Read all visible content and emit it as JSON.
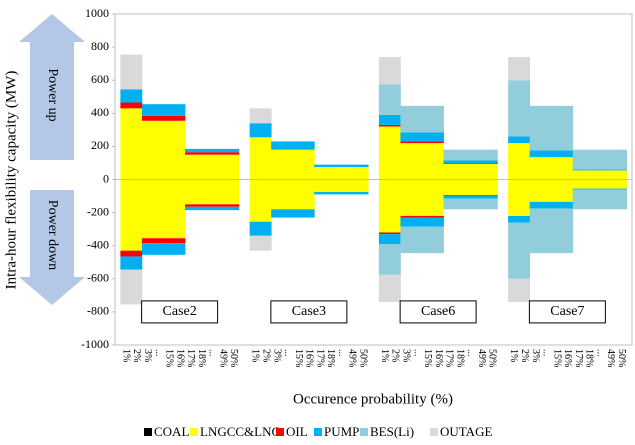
{
  "chart_data": {
    "type": "mirrored-stacked-bar",
    "y_label": "Intra-hour flexibility capacity (MW)",
    "x_label": "Occurence probability (%)",
    "annotations": [
      "Power up",
      "Power down"
    ],
    "ylim": [
      -1000,
      1000
    ],
    "yticks": [
      -1000,
      -800,
      -600,
      -400,
      -200,
      0,
      200,
      400,
      600,
      800,
      1000
    ],
    "grid": false,
    "legend": "bottom",
    "series": [
      {
        "name": "COAL",
        "color": "#000000"
      },
      {
        "name": "LNGCC&LNG",
        "color": "#ffff00"
      },
      {
        "name": "OIL",
        "color": "#ff0000"
      },
      {
        "name": "PUMP",
        "color": "#00b0f0"
      },
      {
        "name": "BES(Li)",
        "color": "#92cddc"
      },
      {
        "name": "OUTAGE",
        "color": "#d9d9d9"
      }
    ],
    "panels": [
      {
        "label": "Case2",
        "categories": [
          "1%",
          "2%",
          "3%",
          "...",
          "15%",
          "16%",
          "17%",
          "18%",
          "...",
          "49%",
          "50%"
        ],
        "values": [
          [
            0,
            0,
            0,
            0,
            0,
            0,
            0,
            0,
            0,
            0,
            0
          ],
          [
            430,
            430,
            355,
            355,
            355,
            355,
            150,
            150,
            150,
            150,
            150
          ],
          [
            35,
            35,
            30,
            30,
            30,
            30,
            15,
            15,
            15,
            15,
            15
          ],
          [
            80,
            80,
            70,
            70,
            70,
            70,
            20,
            20,
            20,
            20,
            20
          ],
          [
            0,
            0,
            0,
            0,
            0,
            0,
            0,
            0,
            0,
            0,
            0
          ],
          [
            210,
            210,
            0,
            0,
            0,
            0,
            0,
            0,
            0,
            0,
            0
          ]
        ]
      },
      {
        "label": "Case3",
        "categories": [
          "1%",
          "2%",
          "3%",
          "...",
          "15%",
          "16%",
          "17%",
          "18%",
          "...",
          "49%",
          "50%"
        ],
        "values": [
          [
            0,
            0,
            0,
            0,
            0,
            0,
            0,
            0,
            0,
            0,
            0
          ],
          [
            255,
            255,
            180,
            180,
            180,
            180,
            75,
            75,
            75,
            75,
            75
          ],
          [
            0,
            0,
            0,
            0,
            0,
            0,
            0,
            0,
            0,
            0,
            0
          ],
          [
            85,
            85,
            50,
            50,
            50,
            50,
            15,
            15,
            15,
            15,
            15
          ],
          [
            0,
            0,
            0,
            0,
            0,
            0,
            0,
            0,
            0,
            0,
            0
          ],
          [
            90,
            90,
            0,
            0,
            0,
            0,
            0,
            0,
            0,
            0,
            0
          ]
        ]
      },
      {
        "label": "Case6",
        "categories": [
          "1%",
          "2%",
          "3%",
          "...",
          "15%",
          "16%",
          "17%",
          "18%",
          "...",
          "49%",
          "50%"
        ],
        "values": [
          [
            0,
            0,
            0,
            0,
            0,
            0,
            0,
            0,
            0,
            0,
            0
          ],
          [
            320,
            320,
            220,
            220,
            220,
            220,
            95,
            95,
            95,
            95,
            95
          ],
          [
            10,
            10,
            10,
            10,
            10,
            10,
            5,
            5,
            5,
            5,
            5
          ],
          [
            60,
            60,
            55,
            55,
            55,
            55,
            15,
            15,
            15,
            15,
            15
          ],
          [
            185,
            185,
            160,
            160,
            160,
            160,
            65,
            65,
            65,
            65,
            65
          ],
          [
            165,
            165,
            0,
            0,
            0,
            0,
            0,
            0,
            0,
            0,
            0
          ]
        ]
      },
      {
        "label": "Case7",
        "categories": [
          "1%",
          "2%",
          "3%",
          "...",
          "15%",
          "16%",
          "17%",
          "18%",
          "...",
          "49%",
          "50%"
        ],
        "values": [
          [
            0,
            0,
            0,
            0,
            0,
            0,
            0,
            0,
            0,
            0,
            0
          ],
          [
            220,
            220,
            135,
            135,
            135,
            135,
            55,
            55,
            55,
            55,
            55
          ],
          [
            0,
            0,
            0,
            0,
            0,
            0,
            0,
            0,
            0,
            0,
            0
          ],
          [
            40,
            40,
            40,
            40,
            40,
            40,
            5,
            5,
            5,
            5,
            5
          ],
          [
            340,
            340,
            270,
            270,
            270,
            270,
            120,
            120,
            120,
            120,
            120
          ],
          [
            140,
            140,
            0,
            0,
            0,
            0,
            0,
            0,
            0,
            0,
            0
          ]
        ]
      }
    ]
  }
}
